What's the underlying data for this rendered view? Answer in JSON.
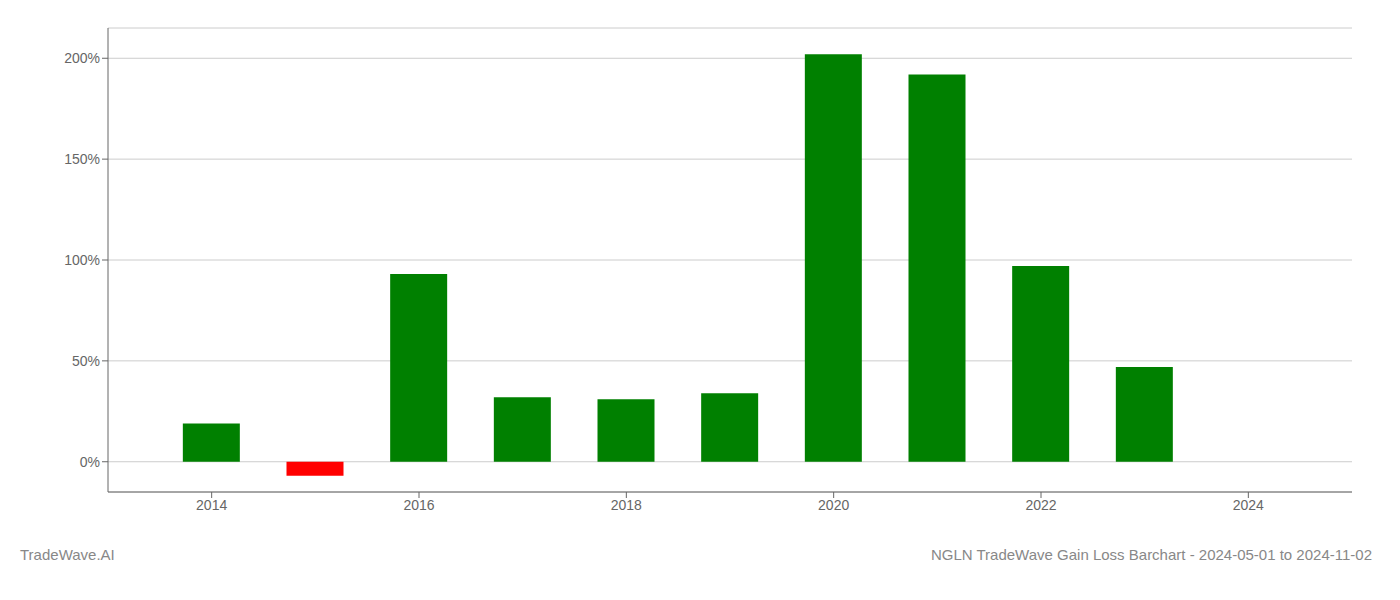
{
  "chart_data": {
    "type": "bar",
    "title": "NGLN TradeWave Gain Loss Barchart - 2024-05-01 to 2024-11-02",
    "annotations": [
      "TradeWave.AI"
    ],
    "x": [
      2014,
      2015,
      2016,
      2017,
      2018,
      2019,
      2020,
      2021,
      2022,
      2023
    ],
    "values": [
      19,
      -7,
      93,
      32,
      31,
      34,
      202,
      192,
      97,
      47
    ],
    "colors": [
      "#008000",
      "#ff0000",
      "#008000",
      "#008000",
      "#008000",
      "#008000",
      "#008000",
      "#008000",
      "#008000",
      "#008000"
    ],
    "xlim": [
      2013,
      2025
    ],
    "xticks": [
      2014,
      2016,
      2018,
      2020,
      2022,
      2024
    ],
    "ylim": [
      -15,
      215
    ],
    "yticks": [
      {
        "value": 0,
        "label": "0%"
      },
      {
        "value": 50,
        "label": "50%"
      },
      {
        "value": 100,
        "label": "100%"
      },
      {
        "value": 150,
        "label": "150%"
      },
      {
        "value": 200,
        "label": "200%"
      }
    ],
    "grid": true
  }
}
